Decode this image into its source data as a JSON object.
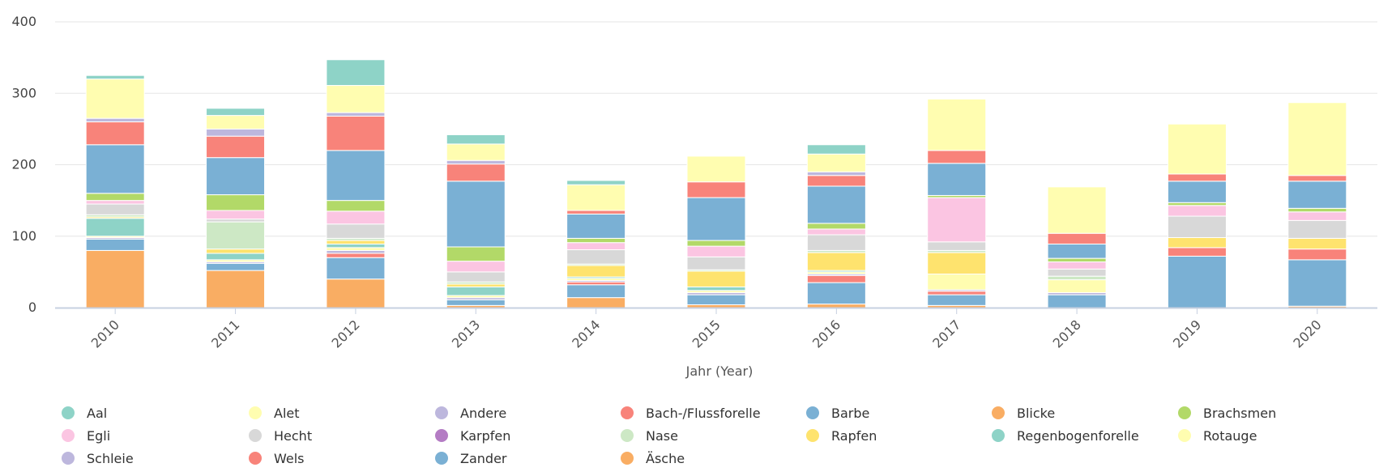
{
  "chart_data": {
    "type": "bar",
    "stacked": true,
    "xlabel": "Jahr (Year)",
    "ylabel": "",
    "ylim": [
      0,
      400
    ],
    "yticks": [
      0,
      100,
      200,
      300,
      400
    ],
    "grid": true,
    "legend_position": "bottom",
    "categories": [
      "2010",
      "2011",
      "2012",
      "2013",
      "2014",
      "2015",
      "2016",
      "2017",
      "2018",
      "2019",
      "2020"
    ],
    "series": [
      {
        "name": "Äsche",
        "color": "#f9ad63",
        "values": [
          80,
          52,
          40,
          3,
          14,
          4,
          5,
          3,
          0,
          0,
          2
        ]
      },
      {
        "name": "Zander",
        "color": "#7ab0d4",
        "values": [
          16,
          10,
          30,
          8,
          18,
          14,
          30,
          15,
          18,
          72,
          65
        ]
      },
      {
        "name": "Wels",
        "color": "#f8837a",
        "values": [
          0,
          0,
          6,
          0,
          4,
          0,
          10,
          5,
          0,
          12,
          15
        ]
      },
      {
        "name": "Schleie",
        "color": "#bdb7dd",
        "values": [
          2,
          2,
          4,
          3,
          2,
          3,
          2,
          2,
          3,
          0,
          0
        ]
      },
      {
        "name": "Rotauge",
        "color": "#fffdb0",
        "values": [
          2,
          3,
          4,
          3,
          3,
          3,
          3,
          22,
          18,
          0,
          0
        ]
      },
      {
        "name": "Regenbogenforelle",
        "color": "#8ed3c7",
        "values": [
          25,
          9,
          5,
          12,
          2,
          5,
          2,
          0,
          0,
          0,
          0
        ]
      },
      {
        "name": "Rapfen",
        "color": "#fee36e",
        "values": [
          2,
          6,
          5,
          4,
          16,
          22,
          25,
          30,
          0,
          14,
          15
        ]
      },
      {
        "name": "Nase",
        "color": "#cde8c5",
        "values": [
          3,
          38,
          3,
          3,
          2,
          2,
          3,
          3,
          5,
          0,
          0
        ]
      },
      {
        "name": "Karpfen",
        "color": "#b47cc4",
        "values": [
          0,
          0,
          0,
          0,
          0,
          0,
          0,
          0,
          0,
          0,
          0
        ]
      },
      {
        "name": "Hecht",
        "color": "#d8d8d8",
        "values": [
          15,
          4,
          20,
          14,
          20,
          18,
          22,
          12,
          10,
          30,
          25
        ]
      },
      {
        "name": "Egli",
        "color": "#fbc5e2",
        "values": [
          5,
          12,
          18,
          15,
          10,
          15,
          8,
          62,
          10,
          15,
          12
        ]
      },
      {
        "name": "Brachsmen",
        "color": "#b2d968",
        "values": [
          10,
          22,
          15,
          20,
          6,
          8,
          8,
          3,
          5,
          4,
          5
        ]
      },
      {
        "name": "Blicke",
        "color": "#f9ad63",
        "values": [
          0,
          0,
          0,
          0,
          0,
          0,
          0,
          0,
          0,
          0,
          0
        ]
      },
      {
        "name": "Barbe",
        "color": "#7ab0d4",
        "values": [
          68,
          52,
          70,
          92,
          34,
          60,
          52,
          45,
          20,
          30,
          38
        ]
      },
      {
        "name": "Bach-/Flussforelle",
        "color": "#f8837a",
        "values": [
          32,
          30,
          48,
          24,
          5,
          22,
          15,
          18,
          15,
          10,
          8
        ]
      },
      {
        "name": "Andere",
        "color": "#bdb7dd",
        "values": [
          5,
          10,
          5,
          5,
          0,
          0,
          5,
          0,
          0,
          0,
          0
        ]
      },
      {
        "name": "Alet",
        "color": "#fffdb0",
        "values": [
          55,
          19,
          38,
          23,
          36,
          36,
          25,
          72,
          65,
          70,
          102
        ]
      },
      {
        "name": "Aal",
        "color": "#8ed3c7",
        "values": [
          5,
          10,
          36,
          13,
          6,
          0,
          13,
          0,
          0,
          0,
          0
        ]
      }
    ]
  },
  "legend": {
    "items": [
      {
        "label": "Aal",
        "color": "#8ed3c7"
      },
      {
        "label": "Alet",
        "color": "#fffdb0"
      },
      {
        "label": "Andere",
        "color": "#bdb7dd"
      },
      {
        "label": "Bach-/Flussforelle",
        "color": "#f8837a"
      },
      {
        "label": "Barbe",
        "color": "#7ab0d4"
      },
      {
        "label": "Blicke",
        "color": "#f9ad63"
      },
      {
        "label": "Brachsmen",
        "color": "#b2d968"
      },
      {
        "label": "Egli",
        "color": "#fbc5e2"
      },
      {
        "label": "Hecht",
        "color": "#d8d8d8"
      },
      {
        "label": "Karpfen",
        "color": "#b47cc4"
      },
      {
        "label": "Nase",
        "color": "#cde8c5"
      },
      {
        "label": "Rapfen",
        "color": "#fee36e"
      },
      {
        "label": "Regenbogenforelle",
        "color": "#8ed3c7"
      },
      {
        "label": "Rotauge",
        "color": "#fffdb0"
      },
      {
        "label": "Schleie",
        "color": "#bdb7dd"
      },
      {
        "label": "Wels",
        "color": "#f8837a"
      },
      {
        "label": "Zander",
        "color": "#7ab0d4"
      },
      {
        "label": "Äsche",
        "color": "#f9ad63"
      }
    ]
  }
}
